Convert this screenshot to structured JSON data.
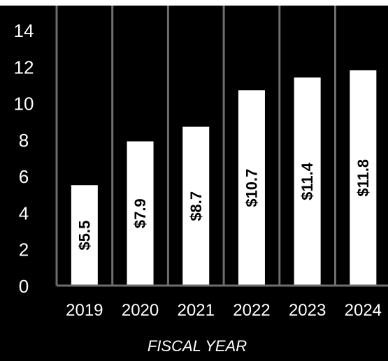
{
  "chart_data": {
    "type": "bar",
    "categories": [
      "2019",
      "2020",
      "2021",
      "2022",
      "2023",
      "2024"
    ],
    "values": [
      5.5,
      7.9,
      8.7,
      10.7,
      11.4,
      11.8
    ],
    "data_labels": [
      "$5.5",
      "$7.9",
      "$8.7",
      "$10.7",
      "$11.4",
      "$11.8"
    ],
    "yticks": [
      "0",
      "2",
      "4",
      "6",
      "8",
      "10",
      "12",
      "14"
    ],
    "ylim": [
      0,
      14
    ],
    "xlabel": "FISCAL YEAR",
    "ylabel": "",
    "title": "",
    "grid": false,
    "colors": {
      "background": "#000000",
      "bar": "#ffffff",
      "divider": "#6e6e6e",
      "text": "#ffffff",
      "label": "#000000"
    }
  }
}
